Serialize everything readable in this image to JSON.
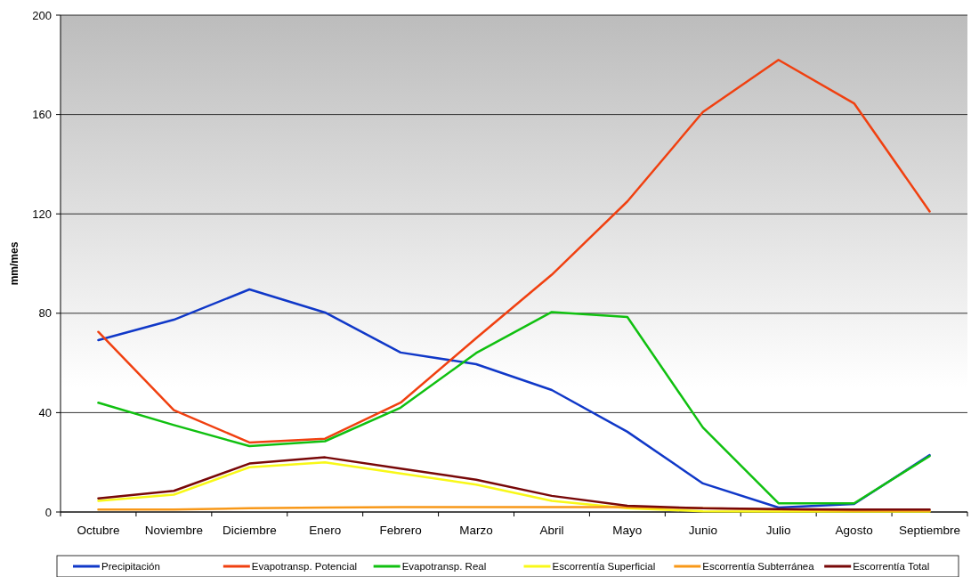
{
  "chart_data": {
    "type": "line",
    "ylabel": "mm/mes",
    "categories": [
      "Octubre",
      "Noviembre",
      "Diciembre",
      "Enero",
      "Febrero",
      "Marzo",
      "Abril",
      "Mayo",
      "Junio",
      "Julio",
      "Agosto",
      "Septiembre"
    ],
    "series": [
      {
        "name": "Precipitación",
        "color": "#1038c8",
        "values": [
          69.2,
          77.4,
          89.6,
          80.3,
          64.2,
          59.5,
          49.1,
          32.3,
          11.5,
          1.8,
          3.2,
          22.9
        ]
      },
      {
        "name": "Evapotransp. Potencial",
        "color": "#f04010",
        "values": [
          72.5,
          41,
          28,
          29.5,
          44,
          70,
          95.5,
          125,
          161,
          182,
          164.5,
          121
        ]
      },
      {
        "name": "Evapotransp. Real",
        "color": "#10c010",
        "values": [
          44,
          35,
          26.5,
          28.5,
          42,
          64,
          80.5,
          78.5,
          34,
          3.5,
          3.5,
          22.5
        ]
      },
      {
        "name": "Escorrentía Superficial",
        "color": "#f8f818",
        "values": [
          4.5,
          7,
          18,
          20,
          15.5,
          11,
          4.5,
          1.5,
          0.3,
          0.2,
          0.2,
          0.2
        ]
      },
      {
        "name": "Escorrentía Subterránea",
        "color": "#f89818",
        "values": [
          1,
          1,
          1.5,
          1.8,
          2,
          2,
          2,
          2,
          1.5,
          1,
          0.5,
          0.5
        ]
      },
      {
        "name": "Escorrentía Total",
        "color": "#780808",
        "values": [
          5.5,
          8.5,
          19.5,
          22,
          17.5,
          13,
          6.5,
          2.5,
          1.5,
          1.2,
          1,
          1
        ]
      }
    ],
    "ylim": [
      0,
      200
    ],
    "yticks": [
      0,
      40,
      80,
      120,
      160,
      200
    ],
    "grid": "y",
    "legend": "bottom",
    "marker": "none",
    "line_style": "solid"
  }
}
